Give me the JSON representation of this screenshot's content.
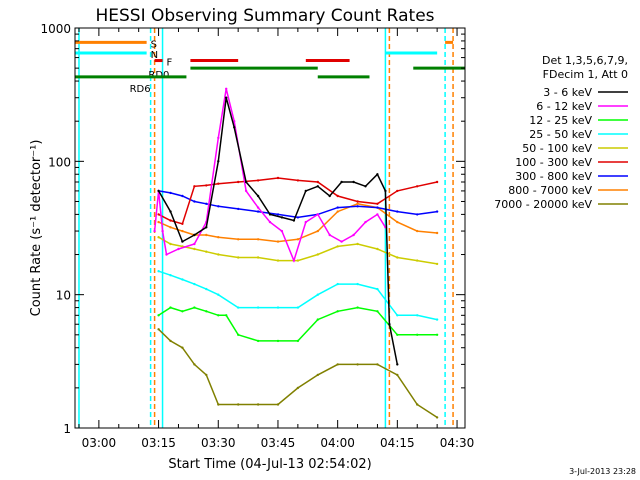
{
  "chart_data": {
    "type": "line",
    "title": "HESSI Observing Summary Count Rates",
    "xlabel": "Start Time (04-Jul-13 02:54:02)",
    "ylabel": "Count Rate (s⁻¹ detector⁻¹)",
    "ylog": true,
    "ylim": [
      1,
      1000
    ],
    "xlim": [
      "02:54",
      "04:32"
    ],
    "x_ticks": [
      "03:00",
      "03:15",
      "03:30",
      "03:45",
      "04:00",
      "04:15",
      "04:30"
    ],
    "y_ticks": [
      "1",
      "10",
      "100",
      "1000"
    ],
    "grid": false,
    "timestamp": "3-Jul-2013 23:28",
    "legend_position": "right",
    "legend_header": [
      "Det 1,3,5,6,7,9,",
      "FDecim 1, Att 0"
    ],
    "series": [
      {
        "name": "3 - 6 keV",
        "color": "#000000",
        "x": [
          "03:15",
          "03:18",
          "03:21",
          "03:24",
          "03:27",
          "03:30",
          "03:32",
          "03:34",
          "03:37",
          "03:40",
          "03:43",
          "03:46",
          "03:49",
          "03:52",
          "03:55",
          "03:58",
          "04:01",
          "04:04",
          "04:07",
          "04:10",
          "04:12",
          "04:13",
          "04:15"
        ],
        "y": [
          60,
          42,
          25,
          28,
          32,
          100,
          300,
          180,
          70,
          55,
          40,
          38,
          36,
          60,
          65,
          55,
          70,
          70,
          65,
          80,
          60,
          6,
          3
        ]
      },
      {
        "name": "6 - 12 keV",
        "color": "#ff00ff",
        "x": [
          "03:14",
          "03:15",
          "03:16",
          "03:17",
          "03:20",
          "03:24",
          "03:27",
          "03:30",
          "03:32",
          "03:34",
          "03:37",
          "03:40",
          "03:43",
          "03:46",
          "03:49",
          "03:52",
          "03:55",
          "03:58",
          "04:01",
          "04:04",
          "04:07",
          "04:10",
          "04:12"
        ],
        "y": [
          30,
          60,
          30,
          20,
          22,
          24,
          35,
          150,
          350,
          200,
          60,
          45,
          35,
          30,
          18,
          35,
          40,
          28,
          25,
          28,
          35,
          40,
          32
        ]
      },
      {
        "name": "12 - 25 keV",
        "color": "#00ff00",
        "x": [
          "03:15",
          "03:18",
          "03:21",
          "03:24",
          "03:27",
          "03:30",
          "03:32",
          "03:35",
          "03:40",
          "03:45",
          "03:50",
          "03:55",
          "04:00",
          "04:05",
          "04:10",
          "04:15",
          "04:20",
          "04:25"
        ],
        "y": [
          7,
          8,
          7.5,
          8,
          7.5,
          7,
          7,
          5,
          4.5,
          4.5,
          4.5,
          6.5,
          7.5,
          8,
          7.5,
          5,
          5,
          5
        ]
      },
      {
        "name": "25 - 50 keV",
        "color": "#00ffff",
        "x": [
          "03:15",
          "03:18",
          "03:21",
          "03:24",
          "03:27",
          "03:30",
          "03:35",
          "03:40",
          "03:45",
          "03:50",
          "03:55",
          "04:00",
          "04:05",
          "04:10",
          "04:15",
          "04:20",
          "04:25"
        ],
        "y": [
          15,
          14,
          13,
          12,
          11,
          10,
          8,
          8,
          8,
          8,
          10,
          12,
          12,
          11,
          7,
          7,
          6.5
        ]
      },
      {
        "name": "50 - 100 keV",
        "color": "#cccc00",
        "x": [
          "03:15",
          "03:18",
          "03:21",
          "03:24",
          "03:27",
          "03:30",
          "03:35",
          "03:40",
          "03:45",
          "03:50",
          "03:55",
          "04:00",
          "04:05",
          "04:10",
          "04:15",
          "04:20",
          "04:25"
        ],
        "y": [
          27,
          24,
          23,
          22,
          21,
          20,
          19,
          19,
          18,
          18,
          20,
          23,
          24,
          22,
          19,
          18,
          17
        ]
      },
      {
        "name": "100 - 300 keV",
        "color": "#e00000",
        "x": [
          "03:15",
          "03:18",
          "03:21",
          "03:24",
          "03:27",
          "03:30",
          "03:35",
          "03:40",
          "03:45",
          "03:50",
          "03:55",
          "04:00",
          "04:05",
          "04:10",
          "04:15",
          "04:20",
          "04:25"
        ],
        "y": [
          40,
          36,
          34,
          65,
          66,
          68,
          70,
          72,
          75,
          72,
          70,
          55,
          50,
          48,
          60,
          65,
          70
        ]
      },
      {
        "name": "300 - 800 keV",
        "color": "#0000ff",
        "x": [
          "03:15",
          "03:18",
          "03:21",
          "03:24",
          "03:27",
          "03:30",
          "03:35",
          "03:40",
          "03:45",
          "03:50",
          "03:55",
          "04:00",
          "04:05",
          "04:10",
          "04:15",
          "04:20",
          "04:25"
        ],
        "y": [
          60,
          58,
          55,
          50,
          48,
          46,
          44,
          42,
          40,
          38,
          40,
          45,
          46,
          45,
          42,
          40,
          42
        ]
      },
      {
        "name": "800 - 7000 keV",
        "color": "#ff8000",
        "x": [
          "03:15",
          "03:18",
          "03:21",
          "03:24",
          "03:27",
          "03:30",
          "03:35",
          "03:40",
          "03:45",
          "03:50",
          "03:55",
          "04:00",
          "04:05",
          "04:10",
          "04:15",
          "04:20",
          "04:25"
        ],
        "y": [
          35,
          32,
          30,
          28,
          28,
          27,
          26,
          26,
          25,
          26,
          30,
          42,
          48,
          45,
          35,
          30,
          29
        ]
      },
      {
        "name": "7000 - 20000 keV",
        "color": "#808000",
        "x": [
          "03:15",
          "03:18",
          "03:21",
          "03:24",
          "03:27",
          "03:30",
          "03:35",
          "03:40",
          "03:45",
          "03:50",
          "03:55",
          "04:00",
          "04:05",
          "04:10",
          "04:15",
          "04:20",
          "04:25"
        ],
        "y": [
          5.5,
          4.5,
          4,
          3,
          2.5,
          1.5,
          1.5,
          1.5,
          1.5,
          2,
          2.5,
          3,
          3,
          3,
          2.5,
          1.5,
          1.2
        ]
      }
    ],
    "flag_bars": [
      {
        "label": "S",
        "color": "#ff8000",
        "level": 780,
        "segments": [
          [
            "02:54",
            "03:12"
          ],
          [
            "04:27",
            "04:29"
          ]
        ]
      },
      {
        "label": "N",
        "color": "#00ffff",
        "level": 650,
        "segments": [
          [
            "02:54",
            "03:12"
          ],
          [
            "04:12",
            "04:25"
          ]
        ]
      },
      {
        "label": "F",
        "color": "#e00000",
        "level": 570,
        "segments": [
          [
            "03:14",
            "03:16"
          ],
          [
            "03:23",
            "03:35"
          ],
          [
            "03:52",
            "04:03"
          ]
        ]
      },
      {
        "label": "RD0",
        "color": "#008000",
        "level": 500,
        "segments": [
          [
            "03:23",
            "03:55"
          ],
          [
            "04:19",
            "04:32"
          ]
        ]
      },
      {
        "label": "RD6",
        "color": "#008000",
        "level": 430,
        "segments": [
          [
            "02:54",
            "03:14"
          ],
          [
            "03:14",
            "03:22"
          ],
          [
            "03:55",
            "04:08"
          ]
        ]
      }
    ],
    "vlines": [
      {
        "x": "02:55",
        "color": "#00ffff",
        "style": "solid"
      },
      {
        "x": "03:13",
        "color": "#00ffff",
        "style": "dashed"
      },
      {
        "x": "03:14",
        "color": "#ff8000",
        "style": "dashed"
      },
      {
        "x": "03:16",
        "color": "#00ffff",
        "style": "solid"
      },
      {
        "x": "04:12",
        "color": "#00ffff",
        "style": "solid"
      },
      {
        "x": "04:13",
        "color": "#ff8000",
        "style": "dashed"
      },
      {
        "x": "04:27",
        "color": "#00ffff",
        "style": "dashed"
      },
      {
        "x": "04:29",
        "color": "#ff8000",
        "style": "dashed"
      }
    ]
  }
}
